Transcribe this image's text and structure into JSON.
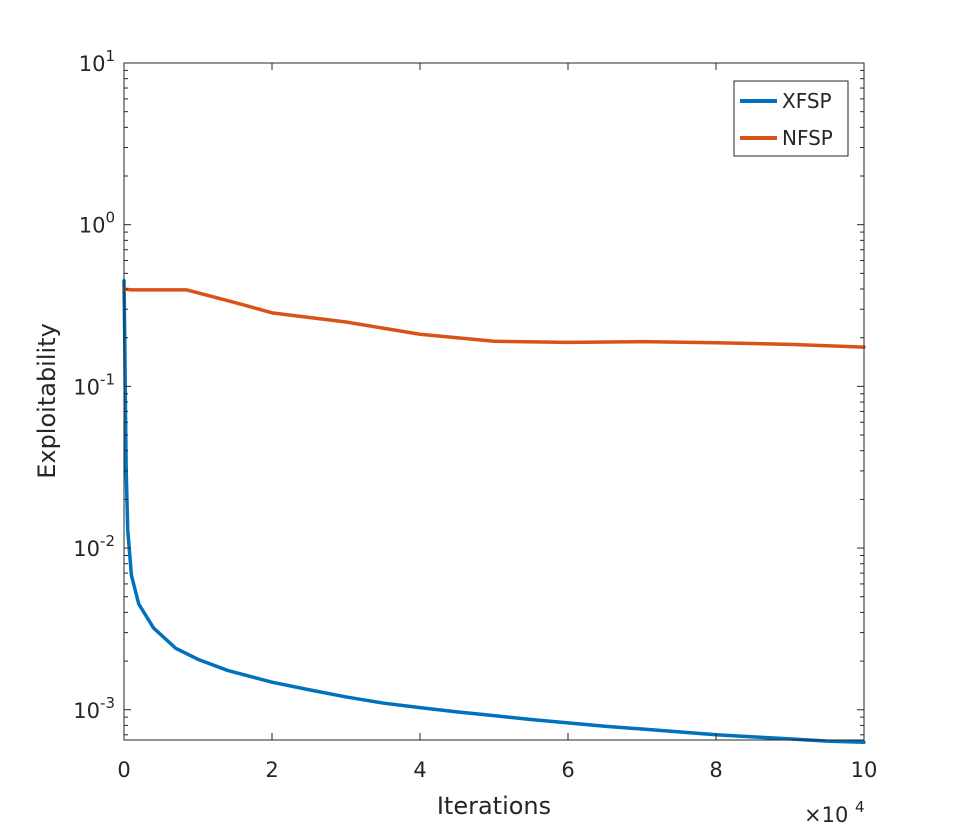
{
  "chart_data": {
    "type": "line",
    "title": "",
    "xlabel": "Iterations",
    "ylabel": "Exploitability",
    "x_multiplier": {
      "base": "×10",
      "exponent": "4"
    },
    "xlim": [
      0,
      10
    ],
    "ylim": [
      0.00065,
      10
    ],
    "yscale": "log",
    "grid": false,
    "legend_location": "top-right",
    "x_ticks": [
      {
        "value": 0,
        "label": "0"
      },
      {
        "value": 2,
        "label": "2"
      },
      {
        "value": 4,
        "label": "4"
      },
      {
        "value": 6,
        "label": "6"
      },
      {
        "value": 8,
        "label": "8"
      },
      {
        "value": 10,
        "label": "10"
      }
    ],
    "y_ticks": [
      {
        "value": 0.001,
        "base": "10",
        "exp": "-3"
      },
      {
        "value": 0.01,
        "base": "10",
        "exp": "-2"
      },
      {
        "value": 0.1,
        "base": "10",
        "exp": "-1"
      },
      {
        "value": 1,
        "base": "10",
        "exp": "0"
      },
      {
        "value": 10,
        "base": "10",
        "exp": "1"
      }
    ],
    "series": [
      {
        "name": "XFSP",
        "color": "#0072bd",
        "x": [
          0,
          0.01,
          0.02,
          0.03,
          0.05,
          0.1,
          0.2,
          0.4,
          0.7,
          1.0,
          1.4,
          2.0,
          2.5,
          3.0,
          3.5,
          4.0,
          4.5,
          5.0,
          5.5,
          6.0,
          6.5,
          7.0,
          7.5,
          8.0,
          8.5,
          9.0,
          9.5,
          10.0
        ],
        "y": [
          0.45,
          0.2,
          0.07,
          0.03,
          0.013,
          0.0068,
          0.0045,
          0.0032,
          0.0024,
          0.00205,
          0.00175,
          0.00148,
          0.00133,
          0.0012,
          0.0011,
          0.00103,
          0.00097,
          0.00092,
          0.00087,
          0.00083,
          0.00079,
          0.00076,
          0.00073,
          0.0007,
          0.00068,
          0.00066,
          0.00064,
          0.00063
        ]
      },
      {
        "name": "NFSP",
        "color": "#d95319",
        "x": [
          0,
          0.1,
          0.5,
          0.85,
          1.5,
          2.0,
          3.0,
          4.0,
          5.0,
          6.0,
          7.0,
          8.0,
          9.0,
          10.0
        ],
        "y": [
          0.4,
          0.395,
          0.395,
          0.395,
          0.33,
          0.285,
          0.25,
          0.21,
          0.19,
          0.187,
          0.189,
          0.186,
          0.182,
          0.175
        ]
      }
    ]
  }
}
